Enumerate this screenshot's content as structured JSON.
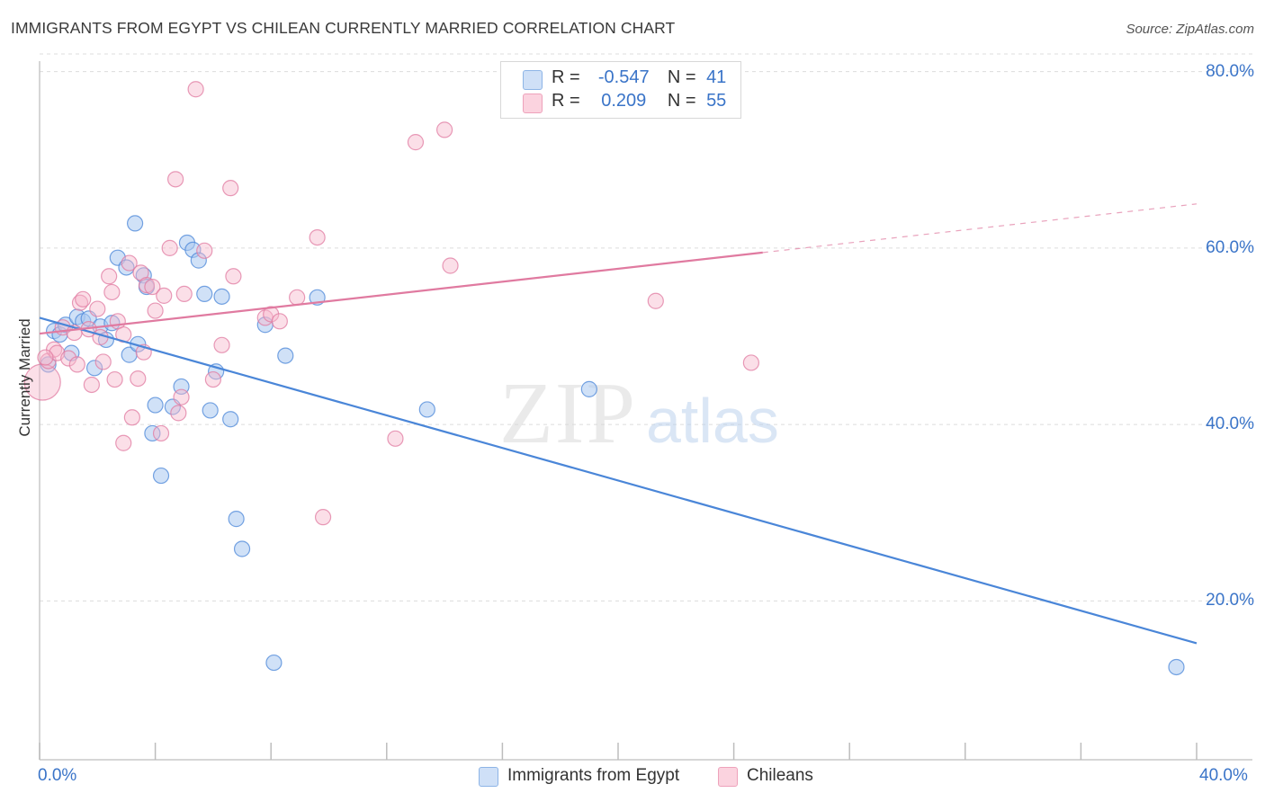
{
  "header": {
    "title": "IMMIGRANTS FROM EGYPT VS CHILEAN CURRENTLY MARRIED CORRELATION CHART",
    "source": "Source: ZipAtlas.com"
  },
  "legend": {
    "rows": [
      {
        "r_label": "R =",
        "r_value": "-0.547",
        "n_label": "N =",
        "n_value": "41",
        "color": "#a9c8f0"
      },
      {
        "r_label": "R =",
        "r_value": "0.209",
        "n_label": "N =",
        "n_value": "55",
        "color": "#f7b8cb"
      }
    ],
    "bottom": [
      {
        "label": "Immigrants from Egypt",
        "color": "#a9c8f0"
      },
      {
        "label": "Chileans",
        "color": "#f7b8cb"
      }
    ]
  },
  "watermark": {
    "zip": "ZIP",
    "atlas": "atlas"
  },
  "chart_data": {
    "type": "scatter",
    "title": "IMMIGRANTS FROM EGYPT VS CHILEAN CURRENTLY MARRIED CORRELATION CHART",
    "xlabel": "",
    "ylabel": "Currently Married",
    "xlim": [
      0,
      40
    ],
    "ylim": [
      2,
      82
    ],
    "x_tick_labels": {
      "min": "0.0%",
      "max": "40.0%"
    },
    "y_ticks": [
      {
        "value": 20,
        "label": "20.0%"
      },
      {
        "value": 40,
        "label": "40.0%"
      },
      {
        "value": 60,
        "label": "60.0%"
      },
      {
        "value": 80,
        "label": "80.0%"
      }
    ],
    "grid": "horizontal dashed",
    "legend_position": "top-center",
    "series": [
      {
        "name": "Immigrants from Egypt",
        "color": "#4a86d8",
        "fill": "#a9c8f0",
        "trend": {
          "x0": 0,
          "y0": 52.1,
          "x1": 40,
          "y1": 15.2,
          "dashed_from": null
        },
        "points": [
          [
            0.3,
            46.8
          ],
          [
            0.5,
            50.6
          ],
          [
            0.7,
            50.2
          ],
          [
            0.9,
            51.3
          ],
          [
            1.1,
            48.1
          ],
          [
            1.3,
            52.2
          ],
          [
            1.5,
            51.7
          ],
          [
            1.7,
            52.0
          ],
          [
            1.9,
            46.4
          ],
          [
            2.1,
            51.1
          ],
          [
            2.3,
            49.6
          ],
          [
            2.5,
            51.5
          ],
          [
            2.7,
            58.9
          ],
          [
            3.0,
            57.8
          ],
          [
            3.1,
            47.9
          ],
          [
            3.3,
            62.8
          ],
          [
            3.4,
            49.1
          ],
          [
            3.6,
            56.9
          ],
          [
            3.7,
            55.6
          ],
          [
            3.9,
            39.0
          ],
          [
            4.0,
            42.2
          ],
          [
            4.2,
            34.2
          ],
          [
            4.6,
            42.0
          ],
          [
            4.9,
            44.3
          ],
          [
            5.1,
            60.6
          ],
          [
            5.3,
            59.8
          ],
          [
            5.5,
            58.6
          ],
          [
            5.7,
            54.8
          ],
          [
            5.9,
            41.6
          ],
          [
            6.1,
            46.0
          ],
          [
            6.3,
            54.5
          ],
          [
            6.6,
            40.6
          ],
          [
            6.8,
            29.3
          ],
          [
            7.0,
            25.9
          ],
          [
            7.8,
            51.3
          ],
          [
            8.1,
            13.0
          ],
          [
            8.5,
            47.8
          ],
          [
            9.6,
            54.4
          ],
          [
            13.4,
            41.7
          ],
          [
            19.0,
            44.0
          ],
          [
            39.3,
            12.5
          ]
        ]
      },
      {
        "name": "Chileans",
        "color": "#e07aa0",
        "fill": "#f7b8cb",
        "trend": {
          "x0": 0,
          "y0": 50.3,
          "x1": 40,
          "y1": 65.0,
          "dashed_from": 25.0
        },
        "points": [
          [
            0.1,
            44.8
          ],
          [
            0.3,
            47.2
          ],
          [
            0.5,
            48.5
          ],
          [
            0.6,
            48.1
          ],
          [
            0.8,
            51.0
          ],
          [
            1.0,
            47.5
          ],
          [
            1.2,
            50.4
          ],
          [
            1.4,
            53.8
          ],
          [
            1.5,
            54.2
          ],
          [
            1.7,
            50.8
          ],
          [
            1.8,
            44.5
          ],
          [
            2.0,
            53.1
          ],
          [
            2.1,
            49.9
          ],
          [
            2.2,
            47.1
          ],
          [
            2.4,
            56.8
          ],
          [
            2.5,
            55.0
          ],
          [
            2.6,
            45.1
          ],
          [
            2.7,
            51.7
          ],
          [
            2.9,
            37.9
          ],
          [
            3.1,
            58.3
          ],
          [
            3.2,
            40.8
          ],
          [
            3.4,
            45.2
          ],
          [
            3.5,
            57.2
          ],
          [
            3.7,
            55.8
          ],
          [
            3.9,
            55.6
          ],
          [
            4.0,
            52.9
          ],
          [
            4.2,
            39.0
          ],
          [
            4.3,
            54.6
          ],
          [
            4.5,
            60.0
          ],
          [
            4.7,
            67.8
          ],
          [
            4.8,
            41.3
          ],
          [
            5.0,
            54.8
          ],
          [
            5.4,
            78.0
          ],
          [
            5.7,
            59.7
          ],
          [
            6.0,
            45.1
          ],
          [
            6.6,
            66.8
          ],
          [
            6.7,
            56.8
          ],
          [
            7.8,
            52.1
          ],
          [
            8.0,
            52.5
          ],
          [
            8.9,
            54.4
          ],
          [
            9.6,
            61.2
          ],
          [
            9.8,
            29.5
          ],
          [
            12.3,
            38.4
          ],
          [
            13.0,
            72.0
          ],
          [
            14.0,
            73.4
          ],
          [
            14.2,
            58.0
          ],
          [
            21.3,
            54.0
          ],
          [
            24.6,
            47.0
          ],
          [
            1.3,
            46.8
          ],
          [
            2.9,
            50.2
          ],
          [
            3.6,
            48.2
          ],
          [
            4.9,
            43.1
          ],
          [
            6.3,
            49.0
          ],
          [
            8.3,
            51.7
          ],
          [
            0.2,
            47.6
          ]
        ]
      }
    ]
  }
}
